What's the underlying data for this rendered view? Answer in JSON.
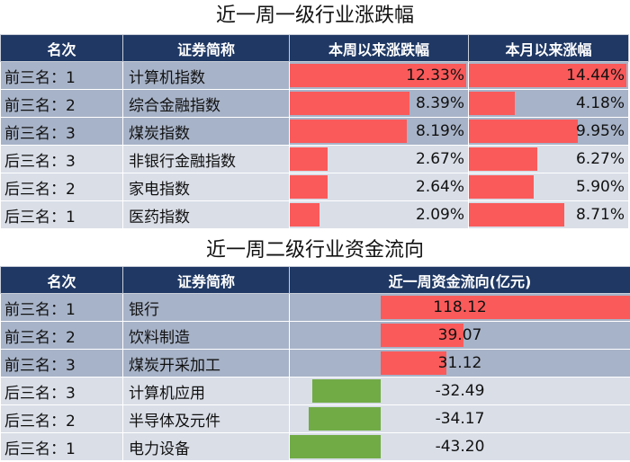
{
  "table1": {
    "title": "近一周一级行业涨跌幅",
    "headers": [
      "名次",
      "证券简称",
      "本周以来涨跌幅",
      "本月以来涨幅"
    ],
    "rows": [
      {
        "rank": "前三名：1",
        "name": "计算机指数",
        "week": "12.33%",
        "month": "14.44%",
        "group": "top",
        "week_value": 12.33,
        "month_value": 14.44
      },
      {
        "rank": "前三名：2",
        "name": "综合金融指数",
        "week": "8.39%",
        "month": "4.18%",
        "group": "top",
        "week_value": 8.39,
        "month_value": 4.18
      },
      {
        "rank": "前三名：3",
        "name": "煤炭指数",
        "week": "8.19%",
        "month": "9.95%",
        "group": "top",
        "week_value": 8.19,
        "month_value": 9.95
      },
      {
        "rank": "后三名：3",
        "name": "非银行金融指数",
        "week": "2.67%",
        "month": "6.27%",
        "group": "bot",
        "week_value": 2.67,
        "month_value": 6.27
      },
      {
        "rank": "后三名：2",
        "name": "家电指数",
        "week": "2.64%",
        "month": "5.90%",
        "group": "bot",
        "week_value": 2.64,
        "month_value": 5.9
      },
      {
        "rank": "后三名：1",
        "name": "医药指数",
        "week": "2.09%",
        "month": "8.71%",
        "group": "bot",
        "week_value": 2.09,
        "month_value": 8.71
      }
    ]
  },
  "table2": {
    "title": "近一周二级行业资金流向",
    "headers": [
      "名次",
      "证券简称",
      "近一周资金流向(亿元)"
    ],
    "rows": [
      {
        "rank": "前三名：1",
        "name": "银行",
        "flow": "118.12",
        "group": "top",
        "flow_value": 118.12
      },
      {
        "rank": "前三名：2",
        "name": "饮料制造",
        "flow": "39.07",
        "group": "top",
        "flow_value": 39.07
      },
      {
        "rank": "前三名：3",
        "name": "煤炭开采加工",
        "flow": "31.12",
        "group": "top",
        "flow_value": 31.12
      },
      {
        "rank": "后三名：3",
        "name": "计算机应用",
        "flow": "-32.49",
        "group": "bot",
        "flow_value": -32.49
      },
      {
        "rank": "后三名：2",
        "name": "半导体及元件",
        "flow": "-34.17",
        "group": "bot",
        "flow_value": -34.17
      },
      {
        "rank": "后三名：1",
        "name": "电力设备",
        "flow": "-43.20",
        "group": "bot",
        "flow_value": -43.2
      }
    ]
  },
  "colors": {
    "header_bg": "#1f3864",
    "top_row": "#a7b3c8",
    "bottom_row": "#d9dee7",
    "positive_bar": "#fa5a5a",
    "negative_bar": "#71ab46"
  }
}
